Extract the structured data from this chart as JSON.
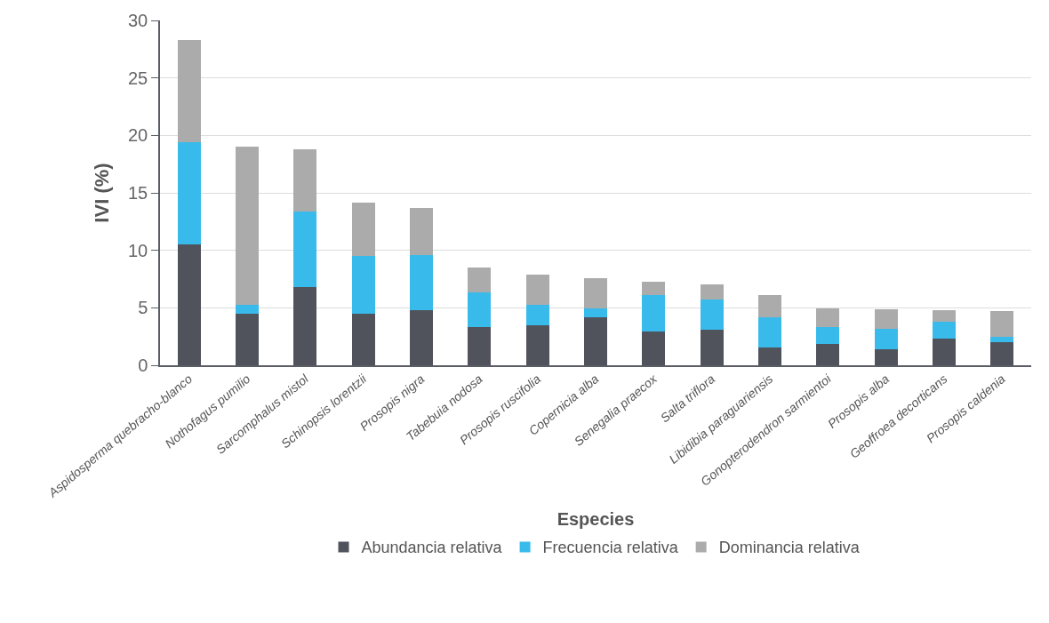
{
  "chart_data": {
    "type": "bar",
    "stacked": true,
    "xlabel": "Especies",
    "ylabel": "IVI (%)",
    "categories": [
      "Aspidosperma quebracho-blanco",
      "Nothofagus pumilio",
      "Sarcomphalus mistol",
      "Schinopsis lorentzii",
      "Prosopis nigra",
      "Tabebuia nodosa",
      "Prosopis ruscifolia",
      "Copernicia alba",
      "Senegalia praecox",
      "Salta triflora",
      "Libidibia paraguariensis",
      "Gonopterodendron sarmientoi",
      "Prosopis alba",
      "Geoffroea decorticans",
      "Prosopis caldenia"
    ],
    "series": [
      {
        "name": "Abundancia relativa",
        "color": "#50535c",
        "values": [
          10.5,
          4.45,
          6.8,
          4.45,
          4.8,
          3.3,
          3.5,
          4.2,
          2.9,
          3.1,
          1.55,
          1.85,
          1.4,
          2.3,
          2.0
        ]
      },
      {
        "name": "Frecuencia relativa",
        "color": "#38bbeb",
        "values": [
          8.9,
          0.8,
          6.55,
          5.05,
          4.75,
          3.05,
          1.75,
          0.75,
          3.2,
          2.65,
          2.65,
          1.45,
          1.75,
          1.5,
          0.45
        ]
      },
      {
        "name": "Dominancia relativa",
        "color": "#ababab",
        "values": [
          8.9,
          13.8,
          5.45,
          4.65,
          4.15,
          2.15,
          2.6,
          2.65,
          1.15,
          1.25,
          1.9,
          1.65,
          1.7,
          1.0,
          2.3
        ]
      }
    ],
    "ylim": [
      0,
      30
    ],
    "yticks": [
      0,
      5,
      10,
      15,
      20,
      25,
      30
    ],
    "grid": "y",
    "legend": "bottom"
  }
}
